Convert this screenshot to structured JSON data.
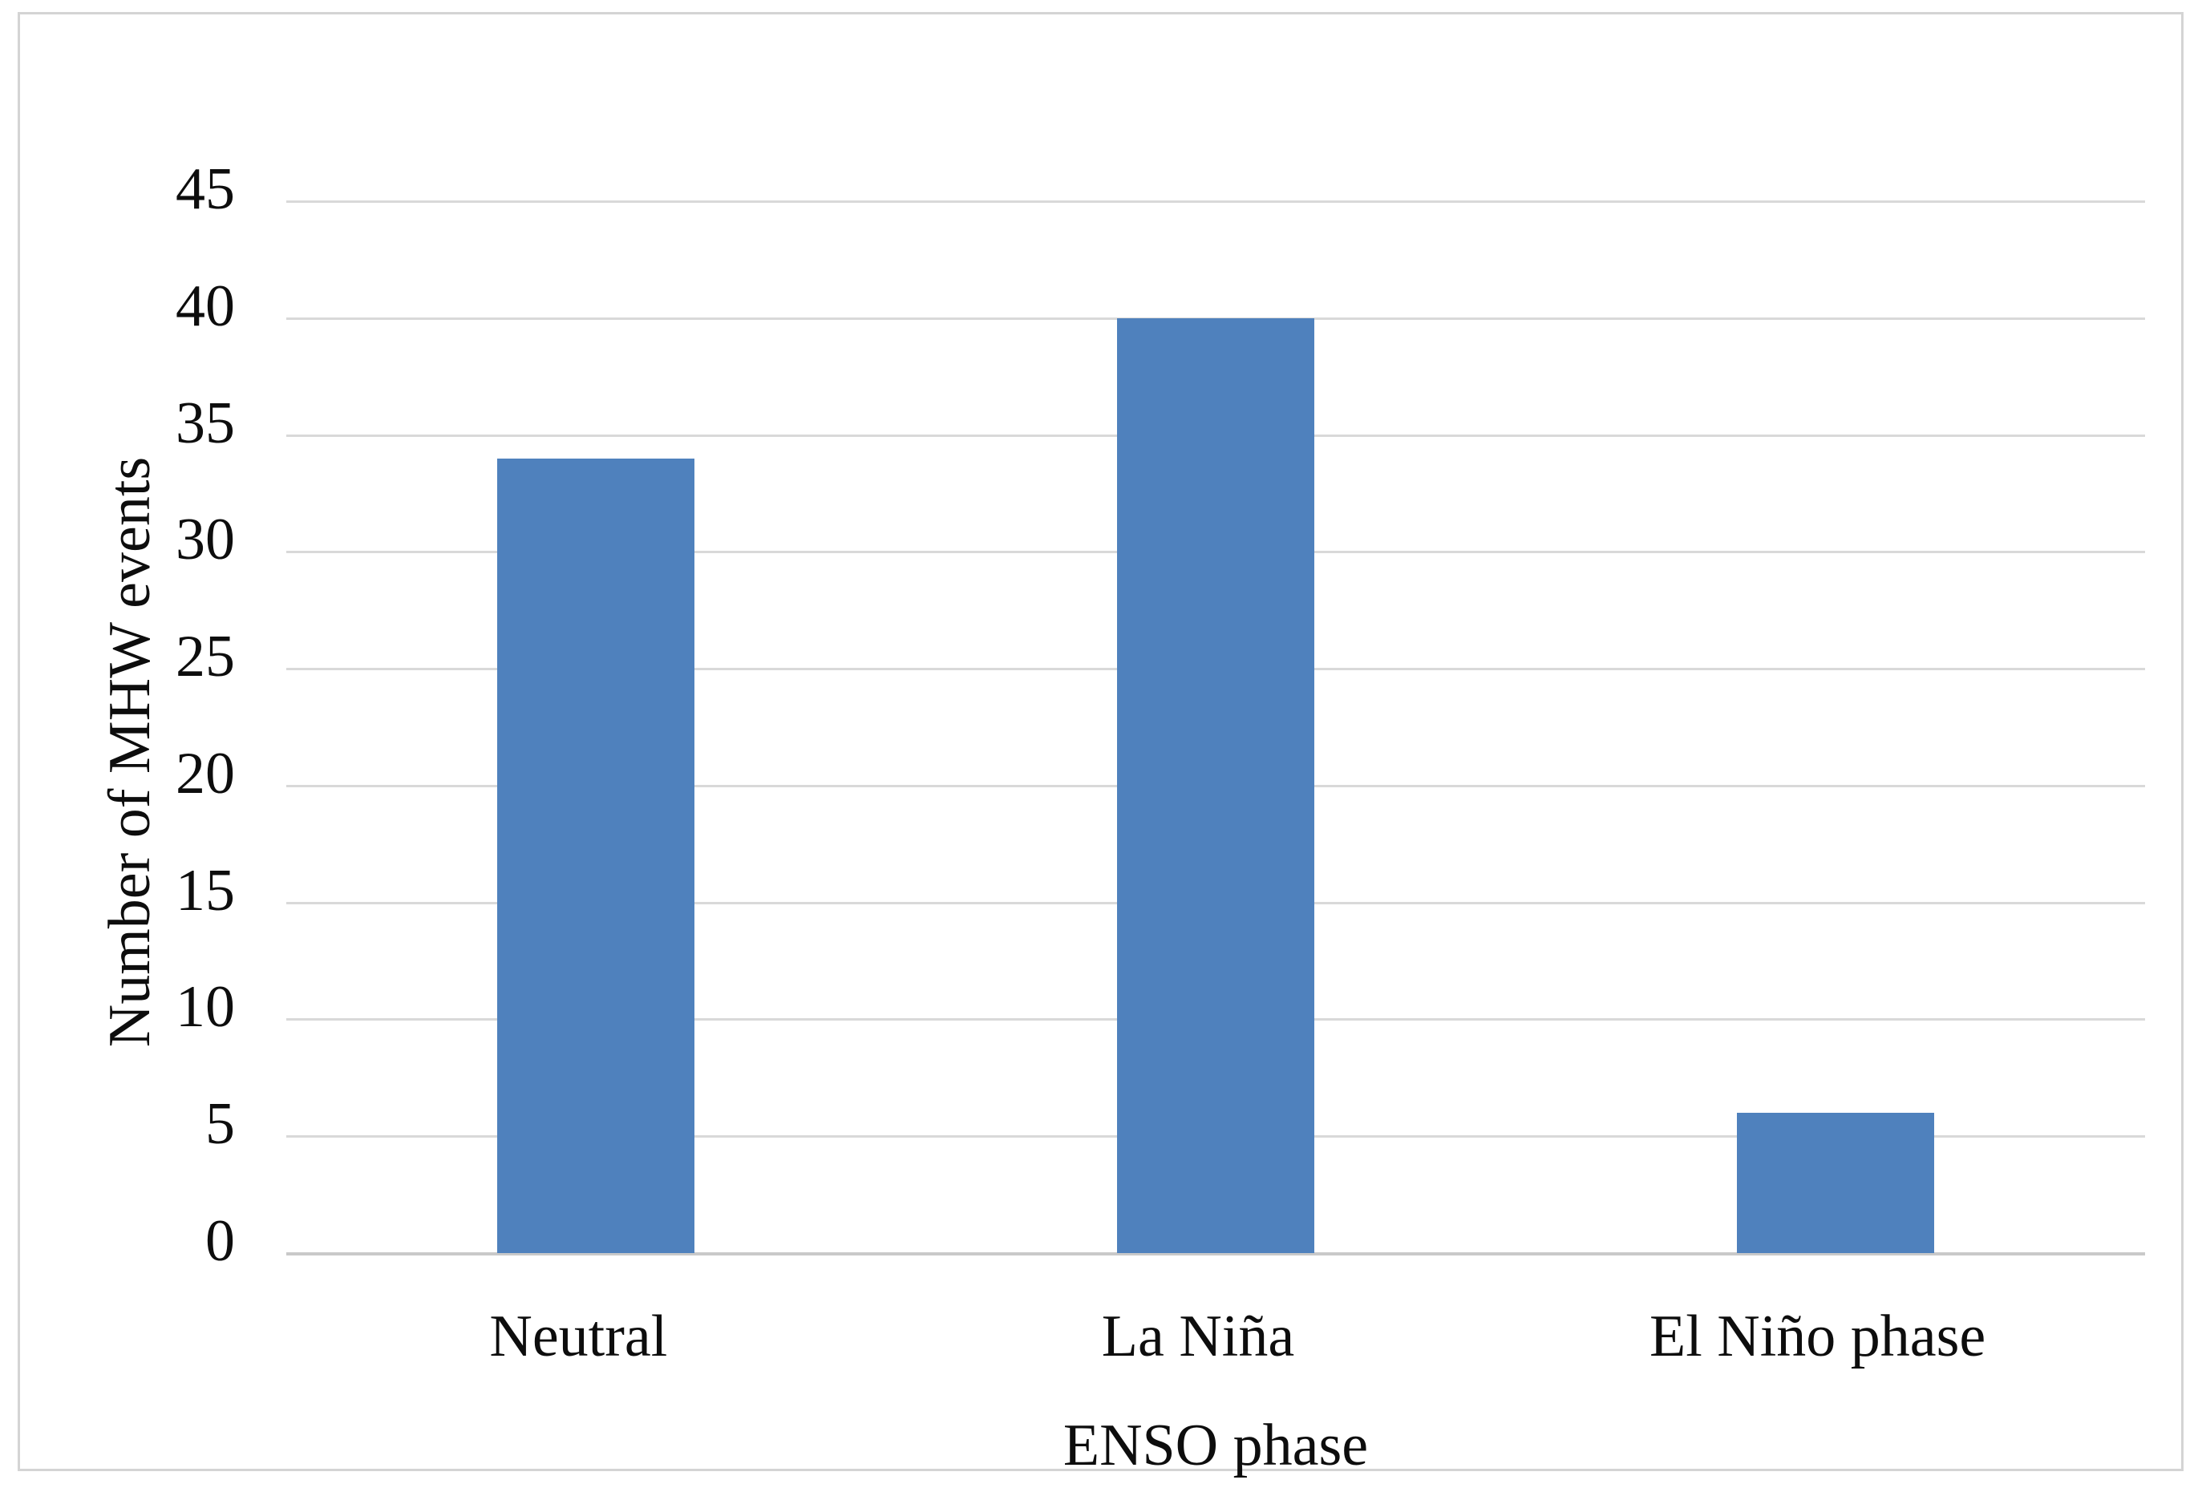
{
  "chart_data": {
    "type": "bar",
    "title": "",
    "categories": [
      "Neutral",
      "La Niña",
      "El Niño phase"
    ],
    "values": [
      34,
      40,
      6
    ],
    "xlabel": "ENSO phase",
    "ylabel": "Number of MHW events",
    "ylim": [
      0,
      45
    ],
    "yticks": [
      0,
      5,
      10,
      15,
      20,
      25,
      30,
      35,
      40,
      45
    ],
    "grid": "horizontal-only",
    "legend": "none",
    "bar_color": "#4f81bd",
    "gridline_color": "#d9d9d9",
    "zero_line_color": "#c9c9c9",
    "frame_border_color": "#d4d4d4",
    "text_color": "#0d0d0d"
  }
}
